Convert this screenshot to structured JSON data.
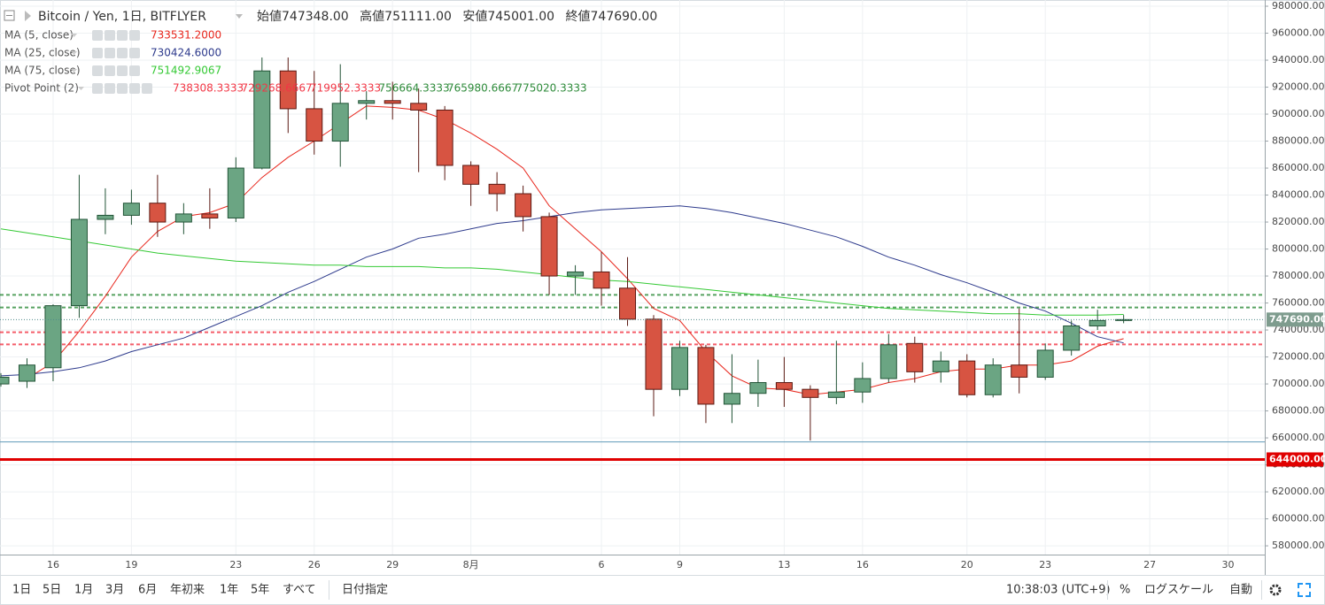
{
  "header": {
    "title": "Bitcoin / Yen, 1日, BITFLYER",
    "ohlc": [
      {
        "name": "始値",
        "value": "747348.00"
      },
      {
        "name": "高値",
        "value": "751111.00"
      },
      {
        "name": "安値",
        "value": "745001.00"
      },
      {
        "name": "終値",
        "value": "747690.00"
      }
    ]
  },
  "chart_data": {
    "type": "candlestick",
    "categories": [
      null,
      null,
      "16",
      null,
      null,
      "19",
      null,
      null,
      null,
      "23",
      null,
      null,
      "26",
      null,
      null,
      "29",
      null,
      null,
      "8月",
      null,
      null,
      null,
      null,
      "6",
      null,
      null,
      "9",
      null,
      null,
      null,
      "13",
      null,
      null,
      "16",
      null,
      null,
      null,
      "20",
      null,
      null,
      "23",
      null,
      null,
      null,
      "27",
      null,
      null,
      "30"
    ],
    "open": [
      700000,
      702000,
      712000,
      758000,
      822000,
      825000,
      834000,
      820000,
      826000,
      823000,
      860000,
      932000,
      904000,
      880000,
      908000,
      910000,
      908000,
      903000,
      862000,
      848000,
      841000,
      824000,
      780000,
      783000,
      771000,
      748000,
      696000,
      727000,
      685000,
      693000,
      701000,
      696000,
      690000,
      694000,
      704000,
      730000,
      709000,
      717000,
      692000,
      714000,
      705000,
      725000,
      743000,
      747348,
      null,
      null,
      null,
      null
    ],
    "high": [
      708000,
      719000,
      759000,
      855000,
      845000,
      844000,
      855000,
      834000,
      845000,
      868000,
      942000,
      942000,
      932000,
      937000,
      917000,
      924000,
      919000,
      906000,
      865000,
      857000,
      847000,
      827000,
      788000,
      798000,
      794000,
      751000,
      732000,
      729000,
      722000,
      718000,
      720000,
      699000,
      732000,
      716000,
      737000,
      735000,
      724000,
      722000,
      719000,
      756000,
      730000,
      747000,
      755000,
      751111,
      null,
      null,
      null,
      null
    ],
    "low": [
      698000,
      697000,
      702000,
      749000,
      811000,
      818000,
      809000,
      811000,
      815000,
      820000,
      859000,
      886000,
      870000,
      861000,
      896000,
      896000,
      857000,
      851000,
      832000,
      828000,
      813000,
      766000,
      766000,
      758000,
      743000,
      676000,
      691000,
      671000,
      671000,
      683000,
      683000,
      658000,
      685000,
      686000,
      701000,
      701000,
      701000,
      690000,
      690000,
      693000,
      703000,
      721000,
      740000,
      745001,
      null,
      null,
      null,
      null
    ],
    "close": [
      705000,
      714000,
      758000,
      822000,
      825000,
      834000,
      820000,
      826000,
      823000,
      860000,
      932000,
      904000,
      880000,
      908000,
      910000,
      908000,
      903000,
      862000,
      848000,
      841000,
      824000,
      780000,
      783000,
      771000,
      748000,
      696000,
      727000,
      685000,
      693000,
      701000,
      696000,
      690000,
      694000,
      704000,
      729000,
      709000,
      717000,
      692000,
      714000,
      705000,
      725000,
      743000,
      747000,
      747690,
      null,
      null,
      null,
      null
    ],
    "up_color": "#6ba583",
    "up_border": "#225437",
    "down_color": "#d75442",
    "down_border": "#5b1a13",
    "series": [
      {
        "name": "MA (5, close)",
        "color": "#e8271d",
        "value_label": "733531.2000",
        "values": [
          null,
          704000,
          716000,
          739000,
          765000,
          794000,
          813000,
          824000,
          827000,
          834000,
          853000,
          868000,
          880000,
          893000,
          906000,
          905000,
          903000,
          896000,
          886000,
          874000,
          860000,
          832000,
          815000,
          798000,
          778000,
          756000,
          747000,
          724000,
          706000,
          697000,
          696000,
          692000,
          694000,
          696000,
          701000,
          704000,
          709000,
          711000,
          711000,
          714000,
          714000,
          717000,
          728000,
          733531.2,
          null,
          null,
          null,
          null
        ]
      },
      {
        "name": "MA (25, close)",
        "color": "#2d3a8c",
        "value_label": "730424.6000",
        "values": [
          706000,
          707000,
          709000,
          712000,
          717000,
          724000,
          729000,
          734000,
          742000,
          750000,
          758000,
          768000,
          776000,
          785000,
          794000,
          800000,
          808000,
          811000,
          815000,
          819000,
          821000,
          824000,
          827000,
          829000,
          830000,
          831000,
          832000,
          830000,
          827000,
          823000,
          819000,
          814000,
          809000,
          802000,
          794000,
          788000,
          781000,
          775000,
          768000,
          760000,
          754000,
          745000,
          735000,
          730424.6,
          null,
          null,
          null,
          null
        ]
      },
      {
        "name": "MA (75, close)",
        "color": "#34c934",
        "value_label": "751492.9067",
        "values": [
          815000,
          812000,
          809000,
          806000,
          803000,
          800000,
          797000,
          795000,
          793000,
          791000,
          790000,
          789000,
          788000,
          788000,
          787000,
          787000,
          787000,
          786000,
          786000,
          785000,
          783000,
          781000,
          779000,
          777000,
          776000,
          774000,
          772000,
          770000,
          768000,
          766000,
          764000,
          762000,
          760000,
          758000,
          756000,
          755000,
          754000,
          753000,
          752000,
          752000,
          751000,
          751000,
          751000,
          751492.9067,
          null,
          null,
          null,
          null
        ]
      }
    ],
    "pivot": {
      "name": "Pivot Point (2)",
      "levels": [
        {
          "value": 738308.3333,
          "color": "#f23645",
          "line": true
        },
        {
          "value": 729268.6667,
          "color": "#f23645",
          "line": true
        },
        {
          "value": 719952.3333,
          "color": "#f23645",
          "line": false
        },
        {
          "value": 756664.3333,
          "color": "#2e8b3a",
          "line": true
        },
        {
          "value": 765980.6667,
          "color": "#2e8b3a",
          "line": true
        },
        {
          "value": 775020.3333,
          "color": "#2e8b3a",
          "line": false
        }
      ]
    },
    "hlines": [
      {
        "value": 644000,
        "label": "644000.00",
        "color": "#e00000"
      },
      {
        "value": 657000,
        "color": "#5f9ab8"
      }
    ],
    "last_price": {
      "value": 747690,
      "label": "747690.00"
    },
    "ylim": [
      573500,
      984600
    ],
    "yticks": [
      {
        "value": 580000,
        "label": "580000.00"
      },
      {
        "value": 600000,
        "label": "600000.00"
      },
      {
        "value": 620000,
        "label": "620000.00"
      },
      {
        "value": 640000,
        "label": "640000.00"
      },
      {
        "value": 660000,
        "label": "660000.00"
      },
      {
        "value": 680000,
        "label": "680000.00"
      },
      {
        "value": 700000,
        "label": "700000.00"
      },
      {
        "value": 720000,
        "label": "720000.00"
      },
      {
        "value": 740000,
        "label": "740000.00"
      },
      {
        "value": 760000,
        "label": "760000.00"
      },
      {
        "value": 780000,
        "label": "780000.00"
      },
      {
        "value": 800000,
        "label": "800000.00"
      },
      {
        "value": 820000,
        "label": "820000.00"
      },
      {
        "value": 840000,
        "label": "840000.00"
      },
      {
        "value": 860000,
        "label": "860000.00"
      },
      {
        "value": 880000,
        "label": "880000.00"
      },
      {
        "value": 900000,
        "label": "900000.00"
      },
      {
        "value": 920000,
        "label": "920000.00"
      },
      {
        "value": 940000,
        "label": "940000.00"
      },
      {
        "value": 960000,
        "label": "960000.00"
      },
      {
        "value": 980000,
        "label": "980000.00"
      }
    ],
    "grid": true
  },
  "toolbar": {
    "ranges": [
      "1日",
      "5日",
      "1月",
      "3月",
      "6月",
      "年初来",
      "1年",
      "5年",
      "すべて"
    ],
    "date_button": "日付指定",
    "time": "10:38:03 (UTC+9)",
    "percent": "%",
    "log": "ログスケール",
    "auto": "自動"
  }
}
